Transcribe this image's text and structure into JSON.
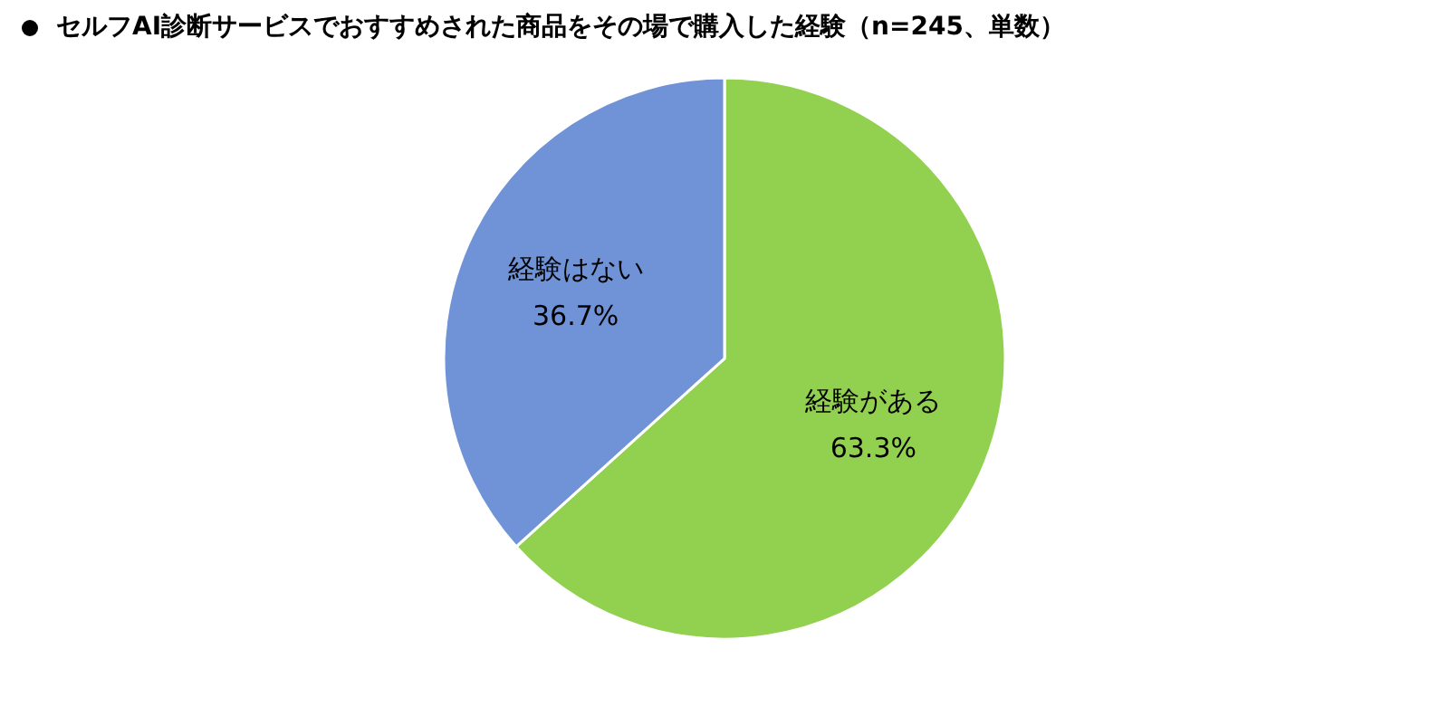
{
  "chart_data": {
    "type": "pie",
    "title": "セルフAI診断サービスでおすすめされた商品をその場で購入した経験（n=245、単数）",
    "categories": [
      "経験がある",
      "経験はない"
    ],
    "values": [
      63.3,
      36.7
    ],
    "colors": [
      "#92d050",
      "#6f93d6"
    ],
    "value_labels": [
      "63.3%",
      "36.7%"
    ]
  }
}
